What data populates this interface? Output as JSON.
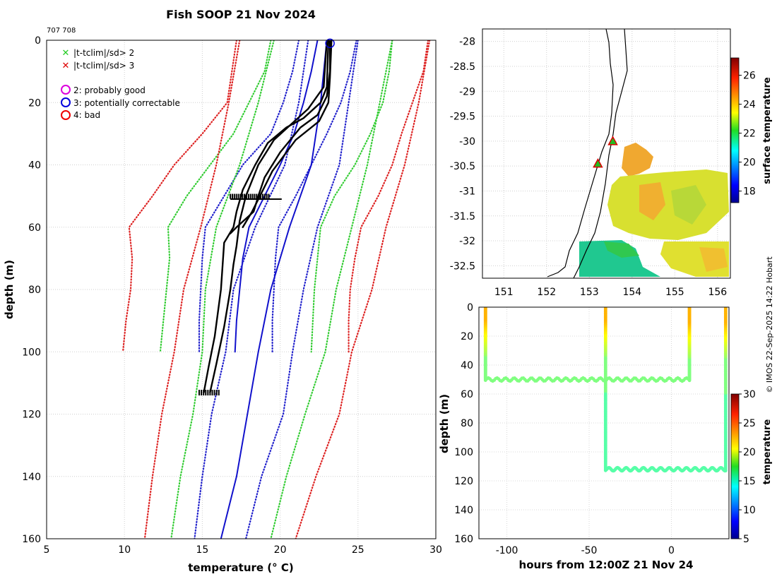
{
  "header": {
    "title": "Fish SOOP 21 Nov 2024",
    "ids": "707 708"
  },
  "credit": "© IMOS 22-Sep-2025 14:22 Hobart",
  "legend": {
    "items": [
      {
        "marker": "x",
        "color": "#22cc22",
        "label": "|t-tclim|/sd> 2"
      },
      {
        "marker": "x",
        "color": "#dd0000",
        "label": "|t-tclim|/sd> 3"
      },
      {
        "marker": "o",
        "color": "#dd00dd",
        "label": "2: probably good"
      },
      {
        "marker": "o",
        "color": "#0000dd",
        "label": "3: potentially correctable"
      },
      {
        "marker": "o",
        "color": "#ee0000",
        "label": "4: bad"
      }
    ]
  },
  "chart_data": [
    {
      "id": "profile",
      "type": "line",
      "xlabel": "temperature (° C)",
      "ylabel": "depth (m)",
      "xlim": [
        5,
        30
      ],
      "ylim": [
        160,
        0
      ],
      "xticks": [
        "5",
        "10",
        "15",
        "20",
        "25",
        "30"
      ],
      "yticks": [
        "0",
        "20",
        "40",
        "60",
        "80",
        "100",
        "120",
        "140",
        "160"
      ],
      "grid": true,
      "series": [
        {
          "name": "clim-3sd-low",
          "color": "#dd2222",
          "style": "dotted",
          "points": [
            [
              17.2,
              0
            ],
            [
              16.6,
              20
            ],
            [
              15.0,
              30
            ],
            [
              13.2,
              40
            ],
            [
              11.8,
              50
            ],
            [
              10.3,
              60
            ],
            [
              10.5,
              70
            ],
            [
              10.4,
              80
            ],
            [
              10.1,
              90
            ],
            [
              9.9,
              100
            ]
          ]
        },
        {
          "name": "clim-3sd-high",
          "color": "#dd2222",
          "style": "dotted",
          "points": [
            [
              29.5,
              0
            ],
            [
              29.2,
              10
            ],
            [
              28.5,
              20
            ],
            [
              27.8,
              30
            ],
            [
              27.2,
              40
            ],
            [
              26.3,
              50
            ],
            [
              25.2,
              60
            ],
            [
              24.8,
              70
            ],
            [
              24.5,
              80
            ],
            [
              24.4,
              90
            ],
            [
              24.4,
              100
            ]
          ]
        },
        {
          "name": "clim-2sd-low",
          "color": "#33cc33",
          "style": "dotted",
          "points": [
            [
              19.4,
              0
            ],
            [
              19.0,
              10
            ],
            [
              18.0,
              20
            ],
            [
              17.0,
              30
            ],
            [
              15.5,
              40
            ],
            [
              14.0,
              50
            ],
            [
              12.8,
              60
            ],
            [
              12.9,
              70
            ],
            [
              12.7,
              80
            ],
            [
              12.5,
              90
            ],
            [
              12.3,
              100
            ]
          ]
        },
        {
          "name": "clim-2sd-high",
          "color": "#33cc33",
          "style": "dotted",
          "points": [
            [
              27.2,
              0
            ],
            [
              27.0,
              10
            ],
            [
              26.6,
              20
            ],
            [
              25.8,
              30
            ],
            [
              24.8,
              40
            ],
            [
              23.5,
              50
            ],
            [
              22.6,
              60
            ],
            [
              22.4,
              70
            ],
            [
              22.2,
              80
            ],
            [
              22.1,
              90
            ],
            [
              22.0,
              100
            ]
          ]
        },
        {
          "name": "clim-1sd-low",
          "color": "#2222cc",
          "style": "dotted",
          "points": [
            [
              21.2,
              0
            ],
            [
              20.8,
              10
            ],
            [
              20.2,
              20
            ],
            [
              19.4,
              30
            ],
            [
              17.6,
              40
            ],
            [
              16.4,
              50
            ],
            [
              15.2,
              60
            ],
            [
              15.0,
              70
            ],
            [
              14.9,
              80
            ],
            [
              14.8,
              90
            ],
            [
              14.8,
              100
            ]
          ]
        },
        {
          "name": "clim-1sd-high",
          "color": "#2222cc",
          "style": "dotted",
          "points": [
            [
              24.9,
              0
            ],
            [
              24.5,
              10
            ],
            [
              23.9,
              20
            ],
            [
              23.0,
              30
            ],
            [
              22.0,
              40
            ],
            [
              21.0,
              50
            ],
            [
              19.9,
              60
            ],
            [
              19.7,
              70
            ],
            [
              19.6,
              80
            ],
            [
              19.5,
              90
            ],
            [
              19.5,
              100
            ]
          ]
        },
        {
          "name": "clim-mean",
          "color": "#1111cc",
          "style": "solid",
          "points": [
            [
              22.4,
              0
            ],
            [
              22.0,
              10
            ],
            [
              21.5,
              20
            ],
            [
              20.9,
              30
            ],
            [
              20.0,
              40
            ],
            [
              19.0,
              50
            ],
            [
              18.0,
              60
            ],
            [
              17.6,
              70
            ],
            [
              17.4,
              80
            ],
            [
              17.2,
              90
            ],
            [
              17.1,
              100
            ]
          ]
        },
        {
          "name": "clim-mean-deep",
          "color": "#1111cc",
          "style": "solid",
          "points": [
            [
              23.0,
              0
            ],
            [
              22.6,
              20
            ],
            [
              22.0,
              40
            ],
            [
              20.6,
              60
            ],
            [
              19.4,
              80
            ],
            [
              18.6,
              100
            ],
            [
              17.9,
              120
            ],
            [
              17.2,
              140
            ],
            [
              16.2,
              160
            ]
          ]
        },
        {
          "name": "clim-1sd-low-deep",
          "color": "#2222cc",
          "style": "dotted",
          "points": [
            [
              21.8,
              0
            ],
            [
              21.2,
              20
            ],
            [
              20.3,
              40
            ],
            [
              18.4,
              60
            ],
            [
              17.0,
              80
            ],
            [
              16.5,
              100
            ],
            [
              15.6,
              120
            ],
            [
              15.0,
              140
            ],
            [
              14.5,
              160
            ]
          ]
        },
        {
          "name": "clim-1sd-high-deep",
          "color": "#2222cc",
          "style": "dotted",
          "points": [
            [
              25.0,
              0
            ],
            [
              24.4,
              20
            ],
            [
              23.8,
              40
            ],
            [
              22.4,
              60
            ],
            [
              21.5,
              80
            ],
            [
              20.8,
              100
            ],
            [
              20.2,
              120
            ],
            [
              18.8,
              140
            ],
            [
              17.8,
              160
            ]
          ]
        },
        {
          "name": "clim-2sd-low-deep",
          "color": "#33cc33",
          "style": "dotted",
          "points": [
            [
              19.6,
              0
            ],
            [
              18.6,
              20
            ],
            [
              17.4,
              40
            ],
            [
              15.9,
              60
            ],
            [
              15.2,
              80
            ],
            [
              15.0,
              100
            ],
            [
              14.4,
              120
            ],
            [
              13.6,
              140
            ],
            [
              13.0,
              160
            ]
          ]
        },
        {
          "name": "clim-2sd-high-deep",
          "color": "#33cc33",
          "style": "dotted",
          "points": [
            [
              27.2,
              0
            ],
            [
              26.4,
              20
            ],
            [
              25.6,
              40
            ],
            [
              24.6,
              60
            ],
            [
              23.6,
              80
            ],
            [
              22.9,
              100
            ],
            [
              21.6,
              120
            ],
            [
              20.4,
              140
            ],
            [
              19.4,
              160
            ]
          ]
        },
        {
          "name": "clim-3sd-low-deep",
          "color": "#dd2222",
          "style": "dotted",
          "points": [
            [
              17.4,
              0
            ],
            [
              16.7,
              20
            ],
            [
              15.9,
              40
            ],
            [
              14.9,
              60
            ],
            [
              13.8,
              80
            ],
            [
              13.2,
              100
            ],
            [
              12.4,
              120
            ],
            [
              11.8,
              140
            ],
            [
              11.3,
              160
            ]
          ]
        },
        {
          "name": "clim-3sd-high-deep",
          "color": "#dd2222",
          "style": "dotted",
          "points": [
            [
              29.6,
              0
            ],
            [
              28.9,
              20
            ],
            [
              28.0,
              40
            ],
            [
              26.8,
              60
            ],
            [
              25.9,
              80
            ],
            [
              24.6,
              100
            ],
            [
              23.8,
              120
            ],
            [
              22.3,
              140
            ],
            [
              21.0,
              160
            ]
          ]
        },
        {
          "name": "profile-1",
          "color": "#000000",
          "style": "solid",
          "points": [
            [
              23.1,
              0
            ],
            [
              23.0,
              15
            ],
            [
              22.6,
              20
            ],
            [
              21.5,
              25
            ],
            [
              20.4,
              28
            ],
            [
              19.2,
              33
            ],
            [
              18.4,
              40
            ],
            [
              17.6,
              48
            ],
            [
              17.2,
              55
            ],
            [
              17.0,
              60
            ],
            [
              16.4,
              65
            ],
            [
              16.2,
              80
            ],
            [
              15.8,
              95
            ],
            [
              15.4,
              105
            ],
            [
              15.1,
              113
            ]
          ]
        },
        {
          "name": "profile-2",
          "color": "#000000",
          "style": "solid",
          "points": [
            [
              23.0,
              0
            ],
            [
              22.8,
              15
            ],
            [
              21.8,
              22
            ],
            [
              20.7,
              27
            ],
            [
              19.6,
              32
            ],
            [
              18.6,
              40
            ],
            [
              17.8,
              50
            ],
            [
              17.4,
              58
            ],
            [
              17.2,
              66
            ],
            [
              17.0,
              72
            ],
            [
              16.8,
              80
            ],
            [
              16.4,
              92
            ],
            [
              15.9,
              104
            ],
            [
              15.5,
              113
            ]
          ]
        },
        {
          "name": "profile-3",
          "color": "#000000",
          "style": "solid",
          "points": [
            [
              23.2,
              0
            ],
            [
              23.2,
              10
            ],
            [
              23.0,
              18
            ],
            [
              22.4,
              24
            ],
            [
              21.3,
              28
            ],
            [
              20.0,
              36
            ],
            [
              19.0,
              44
            ],
            [
              18.6,
              50
            ],
            [
              18.3,
              55
            ],
            [
              17.2,
              60
            ],
            [
              16.8,
              62
            ]
          ]
        },
        {
          "name": "profile-4",
          "color": "#000000",
          "style": "solid",
          "points": [
            [
              23.3,
              0
            ],
            [
              23.2,
              12
            ],
            [
              23.1,
              20
            ],
            [
              22.5,
              26
            ],
            [
              21.0,
              32
            ],
            [
              19.5,
              42
            ],
            [
              18.9,
              48
            ],
            [
              18.2,
              55
            ],
            [
              17.6,
              60
            ]
          ]
        }
      ],
      "flags": [
        {
          "label": "3: potentially correctable",
          "x": 23.2,
          "y": 1
        }
      ]
    },
    {
      "id": "map",
      "type": "heatmap",
      "xlim": [
        150.5,
        156.3
      ],
      "ylim": [
        -32.75,
        -27.75
      ],
      "xticks": [
        "151",
        "152",
        "153",
        "154",
        "155",
        "156"
      ],
      "yticks": [
        "-28",
        "-28.5",
        "-29",
        "-29.5",
        "-30",
        "-30.5",
        "-31",
        "-31.5",
        "-32",
        "-32.5"
      ],
      "colorbar": {
        "label": "surface temperature",
        "ticks": [
          "18",
          "20",
          "22",
          "24",
          "26"
        ],
        "range": [
          17.2,
          27.2
        ]
      },
      "stations": [
        {
          "lon": 153.55,
          "lat": -30.0
        },
        {
          "lon": 153.2,
          "lat": -30.45
        }
      ],
      "track": [
        [
          153.3,
          -27.75
        ],
        [
          153.3,
          -29.0
        ],
        [
          153.05,
          -30.4
        ],
        [
          152.6,
          -31.6
        ],
        [
          152.3,
          -32.75
        ]
      ]
    },
    {
      "id": "timeseries",
      "type": "scatter",
      "xlabel": "hours from 12:00Z 21 Nov 24",
      "ylabel": "depth (m)",
      "xlim": [
        -117,
        35
      ],
      "ylim": [
        160,
        0
      ],
      "xticks": [
        "-100",
        "-50",
        "0"
      ],
      "yticks": [
        "0",
        "20",
        "40",
        "60",
        "80",
        "100",
        "120",
        "140",
        "160"
      ],
      "colorbar": {
        "label": "temperature",
        "ticks": [
          "5",
          "10",
          "15",
          "20",
          "25",
          "30"
        ],
        "range": [
          5,
          30
        ]
      },
      "segments": [
        {
          "name": "profile-a",
          "points": [
            [
              -113,
              0
            ],
            [
              -113,
              50
            ],
            [
              11,
              50
            ],
            [
              11,
              0
            ]
          ]
        },
        {
          "name": "profile-b",
          "points": [
            [
              -40,
              0
            ],
            [
              -40,
              112
            ],
            [
              33,
              112
            ],
            [
              33,
              0
            ]
          ]
        }
      ]
    }
  ]
}
